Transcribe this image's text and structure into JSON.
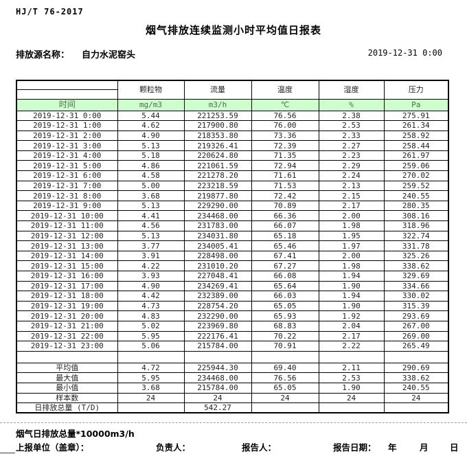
{
  "header": {
    "standard_code": "HJ/T 76-2017",
    "title": "烟气排放连续监测小时平均值日报表",
    "source_label": "排放源名称：",
    "source_name": "自力水泥窑头",
    "report_datetime": "2019-12-31 0:00"
  },
  "table": {
    "time_header": "时间",
    "columns": [
      "颗粒物",
      "流量",
      "温度",
      "湿度",
      "压力"
    ],
    "units": [
      "mg/m3",
      "m3/h",
      "℃",
      "%",
      "Pa"
    ],
    "rows": [
      {
        "time": "2019-12-31 0:00",
        "values": [
          "5.44",
          "221253.59",
          "76.56",
          "2.38",
          "275.91"
        ]
      },
      {
        "time": "2019-12-31 1:00",
        "values": [
          "4.62",
          "217900.80",
          "76.00",
          "2.53",
          "261.34"
        ]
      },
      {
        "time": "2019-12-31 2:00",
        "values": [
          "4.90",
          "218353.80",
          "73.36",
          "2.33",
          "258.92"
        ]
      },
      {
        "time": "2019-12-31 3:00",
        "values": [
          "5.13",
          "219326.41",
          "72.39",
          "2.27",
          "258.44"
        ]
      },
      {
        "time": "2019-12-31 4:00",
        "values": [
          "5.18",
          "220624.80",
          "71.35",
          "2.23",
          "261.97"
        ]
      },
      {
        "time": "2019-12-31 5:00",
        "values": [
          "4.86",
          "221061.59",
          "72.94",
          "2.29",
          "259.06"
        ]
      },
      {
        "time": "2019-12-31 6:00",
        "values": [
          "4.58",
          "221278.20",
          "71.61",
          "2.24",
          "270.02"
        ]
      },
      {
        "time": "2019-12-31 7:00",
        "values": [
          "5.00",
          "223218.59",
          "71.53",
          "2.13",
          "259.52"
        ]
      },
      {
        "time": "2019-12-31 8:00",
        "values": [
          "3.68",
          "219877.80",
          "72.42",
          "2.15",
          "240.55"
        ]
      },
      {
        "time": "2019-12-31 9:00",
        "values": [
          "5.13",
          "229290.00",
          "70.89",
          "2.17",
          "280.35"
        ]
      },
      {
        "time": "2019-12-31 10:00",
        "values": [
          "4.41",
          "234468.00",
          "66.36",
          "2.00",
          "308.16"
        ]
      },
      {
        "time": "2019-12-31 11:00",
        "values": [
          "4.56",
          "231783.00",
          "66.07",
          "1.98",
          "318.96"
        ]
      },
      {
        "time": "2019-12-31 12:00",
        "values": [
          "5.13",
          "234031.80",
          "65.18",
          "1.95",
          "322.74"
        ]
      },
      {
        "time": "2019-12-31 13:00",
        "values": [
          "3.77",
          "234005.41",
          "65.46",
          "1.97",
          "331.78"
        ]
      },
      {
        "time": "2019-12-31 14:00",
        "values": [
          "3.91",
          "228498.00",
          "67.41",
          "2.00",
          "325.26"
        ]
      },
      {
        "time": "2019-12-31 15:00",
        "values": [
          "4.22",
          "231010.20",
          "67.27",
          "1.98",
          "338.62"
        ]
      },
      {
        "time": "2019-12-31 16:00",
        "values": [
          "3.93",
          "227048.41",
          "66.08",
          "1.94",
          "329.69"
        ]
      },
      {
        "time": "2019-12-31 17:00",
        "values": [
          "4.90",
          "234269.41",
          "65.64",
          "1.90",
          "334.66"
        ]
      },
      {
        "time": "2019-12-31 18:00",
        "values": [
          "4.42",
          "232389.00",
          "66.03",
          "1.94",
          "330.02"
        ]
      },
      {
        "time": "2019-12-31 19:00",
        "values": [
          "4.73",
          "228754.20",
          "65.05",
          "1.90",
          "315.39"
        ]
      },
      {
        "time": "2019-12-31 20:00",
        "values": [
          "4.83",
          "232290.00",
          "65.93",
          "1.92",
          "293.69"
        ]
      },
      {
        "time": "2019-12-31 21:00",
        "values": [
          "5.02",
          "223969.80",
          "68.83",
          "2.04",
          "267.00"
        ]
      },
      {
        "time": "2019-12-31 22:00",
        "values": [
          "5.95",
          "222176.41",
          "70.22",
          "2.17",
          "269.00"
        ]
      },
      {
        "time": "2019-12-31 23:00",
        "values": [
          "5.06",
          "215784.00",
          "70.91",
          "2.22",
          "265.49"
        ]
      }
    ],
    "summary": [
      {
        "label": "平均值",
        "values": [
          "4.72",
          "225944.30",
          "69.40",
          "2.11",
          "290.69"
        ]
      },
      {
        "label": "最大值",
        "values": [
          "5.95",
          "234468.00",
          "76.56",
          "2.53",
          "338.62"
        ]
      },
      {
        "label": "最小值",
        "values": [
          "3.68",
          "215784.00",
          "65.05",
          "1.90",
          "240.55"
        ]
      },
      {
        "label": "样本数",
        "values": [
          "24",
          "24",
          "24",
          "24",
          "24"
        ]
      },
      {
        "label": "日排放总量 (T/D)",
        "values": [
          "",
          "542.27",
          "",
          "",
          ""
        ]
      }
    ]
  },
  "footer": {
    "note": "烟气日排放总量*10000m3/h",
    "report_unit_label": "上报单位（盖章）：",
    "responsible_label": "负责人：",
    "reporter_label": "报告人：",
    "report_date_label": "报告日期：",
    "year_label": "年",
    "month_label": "月",
    "day_label": "日"
  },
  "colors": {
    "unit_row_bg": "#ccffcc",
    "unit_row_text": "#4f6b4f",
    "table_border": "#000000"
  }
}
